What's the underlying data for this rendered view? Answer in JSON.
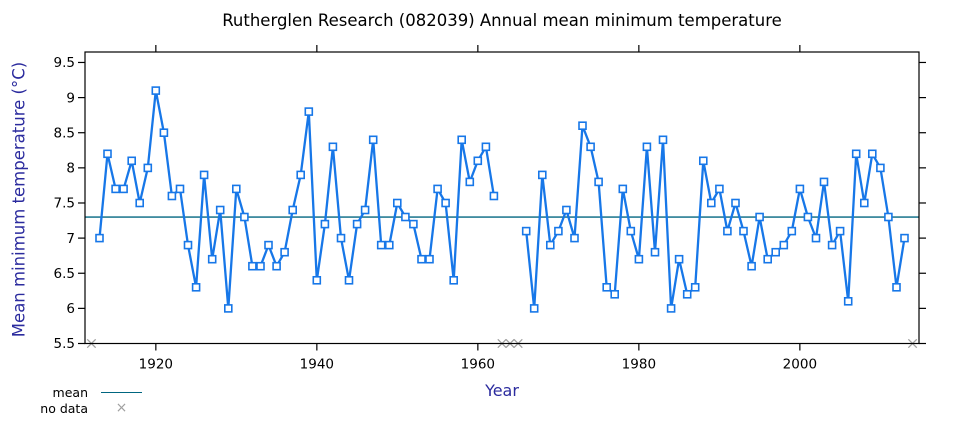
{
  "chart_data": {
    "type": "line",
    "title": "Rutherglen Research (082039) Annual mean minimum temperature",
    "xlabel": "Year",
    "ylabel": "Mean minimum temperature (°C)",
    "xlim": [
      1911.2,
      2014.8
    ],
    "ylim": [
      5.5,
      9.649
    ],
    "xticks": [
      1920,
      1940,
      1960,
      1980,
      2000
    ],
    "xtick_labels": [
      "1920",
      "1940",
      "1960",
      "1980",
      "2000"
    ],
    "yticks": [
      5.5,
      6,
      6.5,
      7,
      7.5,
      8,
      8.5,
      9,
      9.5
    ],
    "ytick_labels": [
      "5.5",
      "6",
      "6.5",
      "7",
      "7.5",
      "8",
      "8.5",
      "9",
      "9.5"
    ],
    "grid": false,
    "mean_value": 7.3,
    "series": [
      {
        "name": "Annual mean minimum temperature",
        "x": [
          1913,
          1914,
          1915,
          1916,
          1917,
          1918,
          1919,
          1920,
          1921,
          1922,
          1923,
          1924,
          1925,
          1926,
          1927,
          1928,
          1929,
          1930,
          1931,
          1932,
          1933,
          1934,
          1935,
          1936,
          1937,
          1938,
          1939,
          1940,
          1941,
          1942,
          1943,
          1944,
          1945,
          1946,
          1947,
          1948,
          1949,
          1950,
          1951,
          1952,
          1953,
          1954,
          1955,
          1956,
          1957,
          1958,
          1959,
          1960,
          1961,
          1962,
          1966,
          1967,
          1968,
          1969,
          1970,
          1971,
          1972,
          1973,
          1974,
          1975,
          1976,
          1977,
          1978,
          1979,
          1980,
          1981,
          1982,
          1983,
          1984,
          1985,
          1986,
          1987,
          1988,
          1989,
          1990,
          1991,
          1992,
          1993,
          1994,
          1995,
          1996,
          1997,
          1998,
          1999,
          2000,
          2001,
          2002,
          2003,
          2004,
          2005,
          2006,
          2007,
          2008,
          2009,
          2010,
          2011,
          2012,
          2013
        ],
        "y": [
          7.0,
          8.2,
          7.7,
          7.7,
          8.1,
          7.5,
          8.0,
          9.1,
          8.5,
          7.6,
          7.7,
          6.9,
          6.3,
          7.9,
          6.7,
          7.4,
          6.0,
          7.7,
          7.3,
          6.6,
          6.6,
          6.9,
          6.6,
          6.8,
          7.4,
          7.9,
          8.8,
          6.4,
          7.2,
          8.3,
          7.0,
          6.4,
          7.2,
          7.4,
          8.4,
          6.9,
          6.9,
          7.5,
          7.3,
          7.2,
          6.7,
          6.7,
          7.7,
          7.5,
          6.4,
          8.4,
          7.8,
          8.1,
          8.3,
          7.6,
          7.1,
          6.0,
          7.9,
          6.9,
          7.1,
          7.4,
          7.0,
          8.6,
          8.3,
          7.8,
          6.3,
          6.2,
          7.7,
          7.1,
          6.7,
          8.3,
          6.8,
          8.4,
          6.0,
          6.7,
          6.2,
          6.3,
          8.1,
          7.5,
          7.7,
          7.1,
          7.5,
          7.1,
          6.6,
          7.3,
          6.7,
          6.8,
          6.9,
          7.1,
          7.7,
          7.3,
          7.0,
          7.8,
          6.9,
          7.1,
          6.1,
          8.2,
          7.5,
          8.2,
          8.0,
          7.3,
          6.3,
          7.0
        ]
      }
    ],
    "no_data_years": [
      1912,
      1963,
      1964,
      1965,
      2014
    ],
    "no_data_marker_glyph": "×",
    "legend_position": "bottom-left-outside",
    "legend": [
      {
        "label": "mean",
        "swatch": "line"
      },
      {
        "label": "no data",
        "swatch": "cross"
      }
    ],
    "colors": {
      "series": "#1777e8",
      "mean": "#006680",
      "no_data": "#a0a0a0",
      "axis_label": "#2b2b9e",
      "axis_frame": "#000000",
      "title": "#000000"
    }
  }
}
